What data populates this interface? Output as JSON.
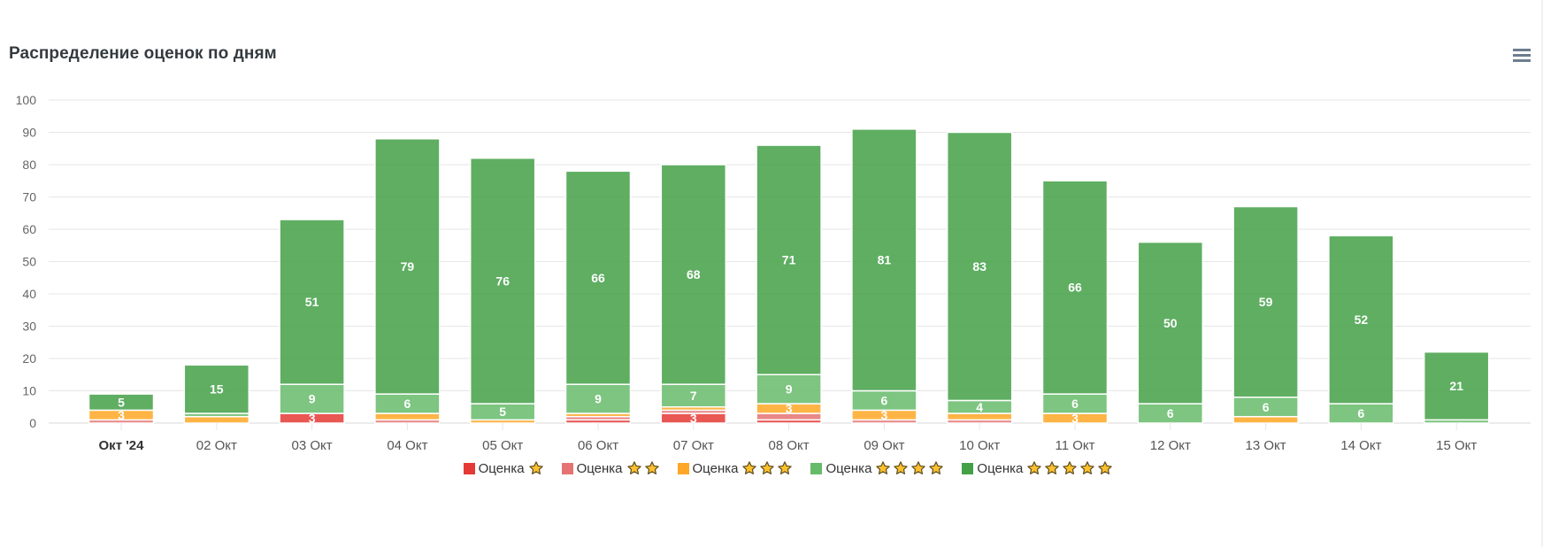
{
  "header": {
    "title": "Распределение оценок по дням",
    "menu_icon": "hamburger-menu-icon"
  },
  "colors": {
    "rating_1": "#e53935",
    "rating_2": "#e57373",
    "rating_3": "#ffa726",
    "rating_4": "#66bb6a",
    "rating_5": "#43a047",
    "star_fill": "#fbc02d",
    "star_stroke": "#5d4a1f",
    "grid": "#e6e6e6",
    "axis_text": "#666666"
  },
  "chart_data": {
    "type": "bar",
    "stacked": true,
    "title": "Распределение оценок по дням",
    "xlabel": "",
    "ylabel": "",
    "ylim": [
      0,
      100
    ],
    "yticks": [
      0,
      10,
      20,
      30,
      40,
      50,
      60,
      70,
      80,
      90,
      100
    ],
    "grid": true,
    "legend_position": "bottom-center",
    "categories": [
      "Окт '24",
      "02 Окт",
      "03 Окт",
      "04 Окт",
      "05 Окт",
      "06 Окт",
      "07 Окт",
      "08 Окт",
      "09 Окт",
      "10 Окт",
      "11 Окт",
      "12 Окт",
      "13 Окт",
      "14 Окт",
      "15 Окт"
    ],
    "bold_categories": [
      "Окт '24"
    ],
    "series": [
      {
        "name": "Оценка",
        "stars": 1,
        "color_key": "rating_1",
        "values": [
          0,
          0,
          3,
          0,
          0,
          1,
          3,
          1,
          0,
          0,
          0,
          0,
          0,
          0,
          0
        ]
      },
      {
        "name": "Оценка",
        "stars": 2,
        "color_key": "rating_2",
        "values": [
          1,
          0,
          0,
          1,
          0,
          1,
          1,
          2,
          1,
          1,
          0,
          0,
          0,
          0,
          0
        ]
      },
      {
        "name": "Оценка",
        "stars": 3,
        "color_key": "rating_3",
        "values": [
          3,
          2,
          0,
          2,
          1,
          1,
          1,
          3,
          3,
          2,
          3,
          0,
          2,
          0,
          0
        ]
      },
      {
        "name": "Оценка",
        "stars": 4,
        "color_key": "rating_4",
        "values": [
          0,
          1,
          9,
          6,
          5,
          9,
          7,
          9,
          6,
          4,
          6,
          6,
          6,
          6,
          1
        ]
      },
      {
        "name": "Оценка",
        "stars": 5,
        "color_key": "rating_5",
        "values": [
          5,
          15,
          51,
          79,
          76,
          66,
          68,
          71,
          81,
          83,
          66,
          50,
          59,
          52,
          21
        ]
      }
    ],
    "data_label_min": 3
  }
}
